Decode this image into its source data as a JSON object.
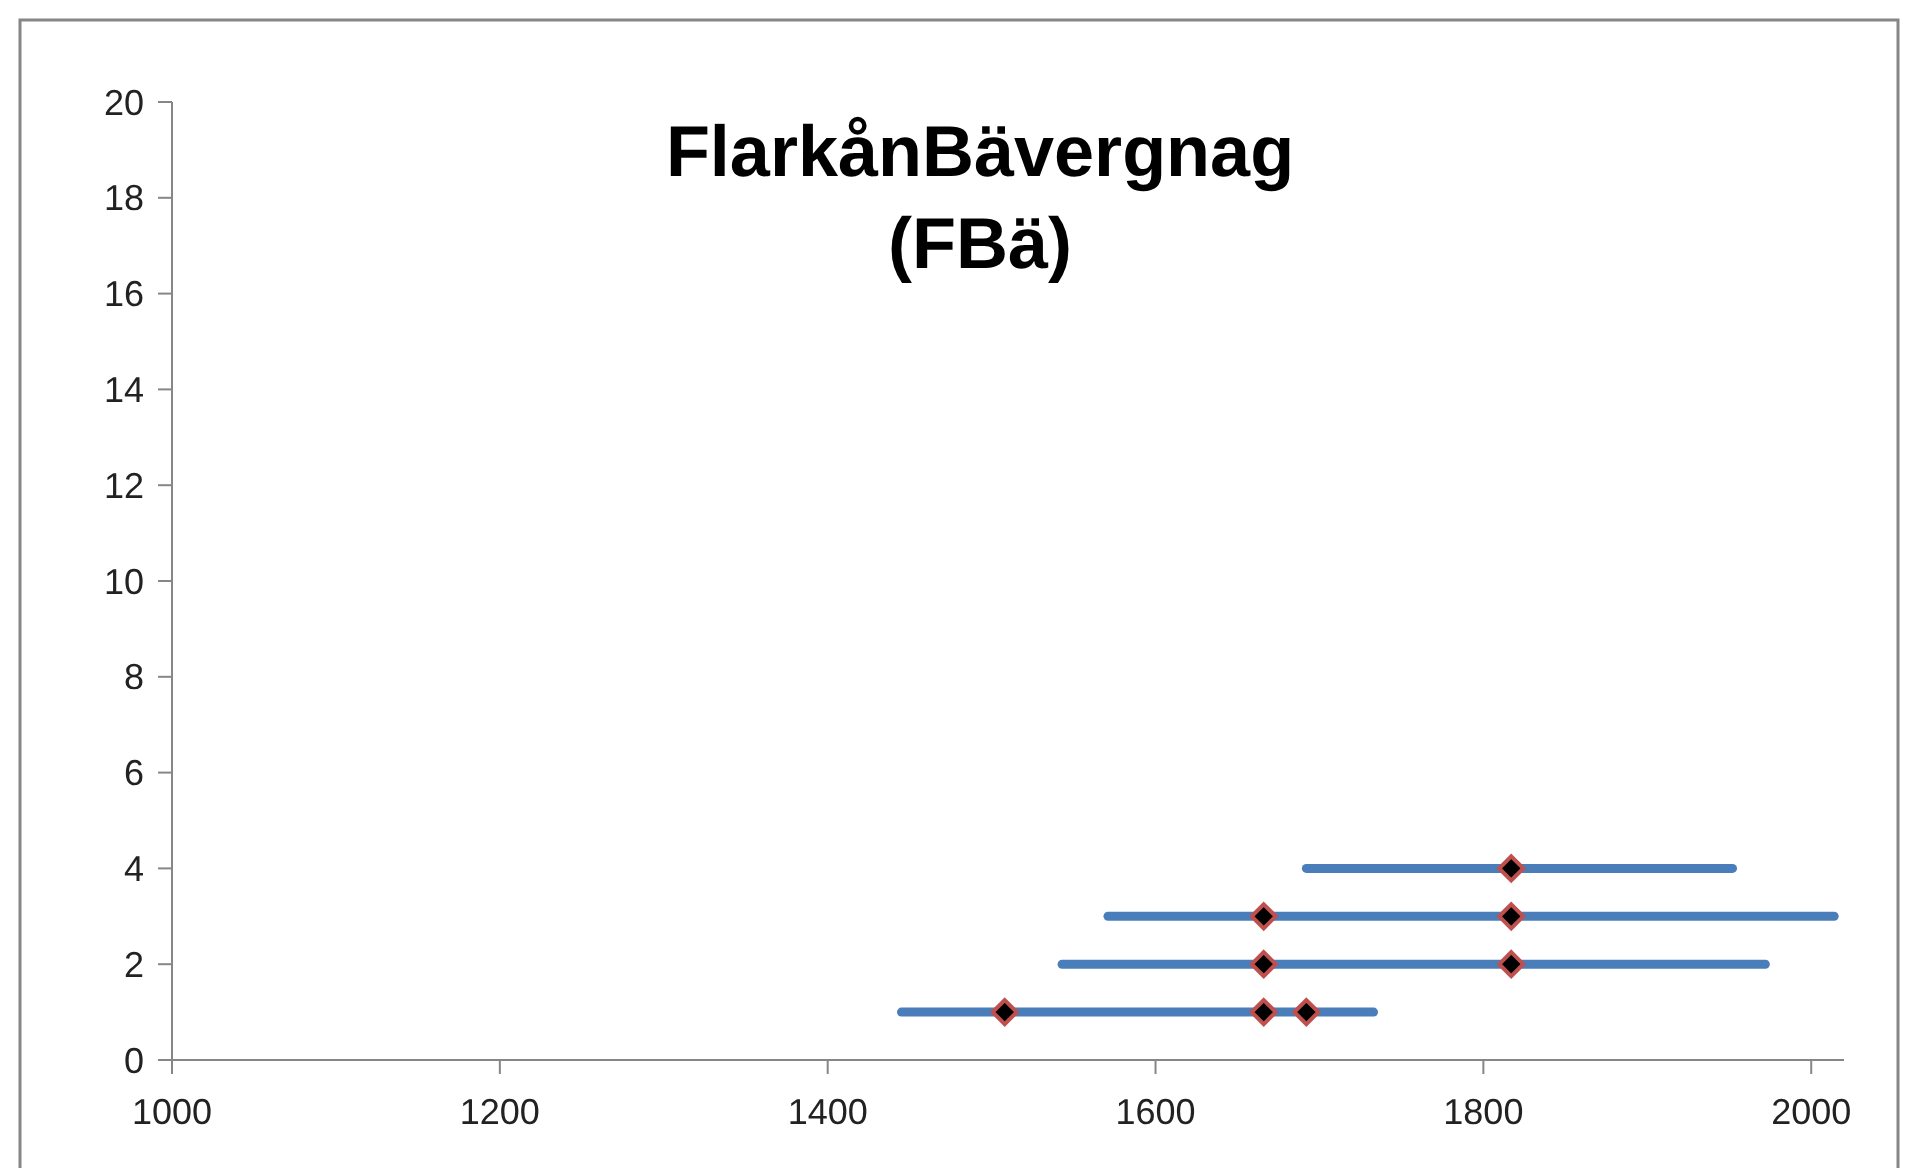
{
  "chart_data": {
    "type": "line",
    "title": "FlarkånBävergnag\n(FBä)",
    "xlim": [
      1000,
      2020
    ],
    "xticks": [
      1000,
      1200,
      1400,
      1600,
      1800,
      2000
    ],
    "ylim": [
      0,
      20
    ],
    "yticks": [
      0,
      2,
      4,
      6,
      8,
      10,
      12,
      14,
      16,
      18,
      20
    ],
    "grid": false,
    "marker": "none",
    "line_style": "solid",
    "series": [
      {
        "color": "#4a7ebb",
        "x": [
          1692,
          1952
        ],
        "values": [
          4,
          4
        ]
      },
      {
        "color": "#4a7ebb",
        "x": [
          1571,
          2014
        ],
        "values": [
          3,
          3
        ]
      },
      {
        "color": "#4a7ebb",
        "x": [
          1543,
          1972
        ],
        "values": [
          2,
          2
        ]
      },
      {
        "color": "#4a7ebb",
        "x": [
          1445,
          1733
        ],
        "values": [
          1,
          1
        ]
      },
      {
        "type": "scatter",
        "marker": "diamond",
        "color": "#000000",
        "x": [
          1817,
          1666,
          1817,
          1666,
          1817,
          1508,
          1666,
          1692
        ],
        "values": [
          4,
          3,
          3,
          2,
          2,
          1,
          1,
          1
        ]
      }
    ]
  }
}
